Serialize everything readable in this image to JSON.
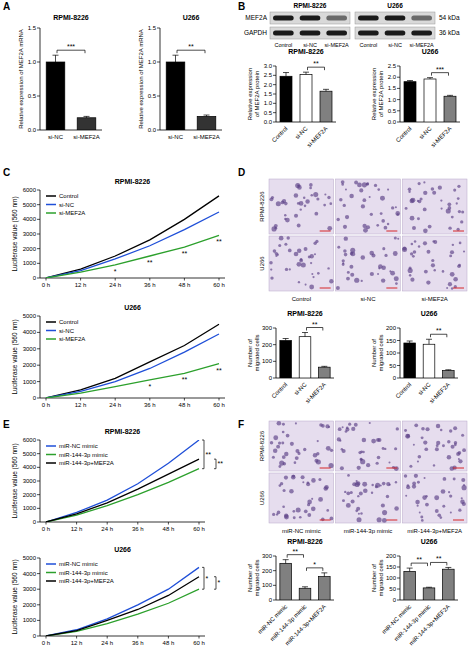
{
  "figure": {
    "panel_letters": [
      "A",
      "B",
      "C",
      "D",
      "E",
      "F"
    ],
    "blot": {
      "groups": [
        "RPMI-8226",
        "U266"
      ],
      "lanes": [
        "Control",
        "si-NC",
        "si-MEF2A"
      ],
      "rows": [
        {
          "protein": "MEF2A",
          "size": "54 kDa"
        },
        {
          "protein": "GAPDH",
          "size": "36 kDa"
        }
      ]
    },
    "micrographs": [
      {
        "rows": [
          "RPMI-8226",
          "U266"
        ],
        "columns": [
          "Control",
          "si-NC",
          "si-MEF2A"
        ]
      },
      {
        "rows": [
          "RPMI-8226",
          "U266"
        ],
        "columns": [
          "miR-NC mimic",
          "miR-144-3p mimic",
          "miR-144-3p+MEF2A"
        ]
      }
    ]
  },
  "chart_data": [
    {
      "type": "bar",
      "title": "RPMI-8226",
      "y_label": "Relative expression of MEF2A mRNA",
      "categories": [
        "si-NC",
        "si-MEF2A"
      ],
      "values": [
        1.0,
        0.18
      ],
      "errors": [
        0.1,
        0.02
      ],
      "colors": [
        "#000000",
        "#333333"
      ],
      "ylim": [
        0,
        1.5
      ],
      "yticks": [
        {
          "value": 0,
          "label": "0.0"
        },
        0.5,
        {
          "value": 1,
          "label": "1.0"
        },
        1.5
      ],
      "annotations": [
        {
          "text": "***",
          "between": [
            "si-NC",
            "si-MEF2A"
          ]
        }
      ]
    },
    {
      "type": "bar",
      "title": "U266",
      "y_label": "Relative expression of MEF2A mRNA",
      "categories": [
        "si-NC",
        "si-MEF2A"
      ],
      "values": [
        1.0,
        0.2
      ],
      "errors": [
        0.1,
        0.02
      ],
      "colors": [
        "#000000",
        "#333333"
      ],
      "ylim": [
        0,
        1.5
      ],
      "yticks": [
        {
          "value": 0,
          "label": "0.0"
        },
        0.5,
        {
          "value": 1,
          "label": "1.0"
        },
        1.5
      ],
      "annotations": [
        {
          "text": "**",
          "between": [
            "si-NC",
            "si-MEF2A"
          ]
        }
      ]
    },
    {
      "type": "bar",
      "title": "RPMI-8226",
      "y_label": "Relative expression of MEF2A protein",
      "categories": [
        "Control",
        "si-NC",
        "si-MEF2A"
      ],
      "values": [
        2.45,
        2.55,
        1.65
      ],
      "errors": [
        0.2,
        0.12,
        0.1
      ],
      "colors": [
        "#000000",
        "#ffffff",
        "#808080"
      ],
      "ylim": [
        0,
        3
      ],
      "yticks": [
        {
          "value": 0,
          "label": "0.0"
        },
        0.5,
        {
          "value": 1,
          "label": "1.0"
        },
        1.5,
        {
          "value": 2,
          "label": "2.0"
        },
        2.5,
        {
          "value": 3,
          "label": "3.0"
        }
      ],
      "annotations": [
        {
          "text": "**",
          "between": [
            "si-NC",
            "si-MEF2A"
          ]
        }
      ]
    },
    {
      "type": "bar",
      "title": "U266",
      "y_label": "Relative expression of MEF2A protein",
      "categories": [
        "Control",
        "si-NC",
        "si-MEF2A"
      ],
      "values": [
        1.8,
        1.92,
        1.15
      ],
      "errors": [
        0.05,
        0.06,
        0.04
      ],
      "colors": [
        "#000000",
        "#ffffff",
        "#808080"
      ],
      "ylim": [
        0,
        2.5
      ],
      "yticks": [
        {
          "value": 0,
          "label": "0.0"
        },
        0.5,
        {
          "value": 1,
          "label": "1.0"
        },
        1.5,
        {
          "value": 2,
          "label": "2.0"
        },
        2.5
      ],
      "annotations": [
        {
          "text": "***",
          "between": [
            "si-NC",
            "si-MEF2A"
          ]
        }
      ]
    },
    {
      "type": "line",
      "title": "RPMI-8226",
      "y_label": "Luciferase value (560 nm)",
      "categories": [
        "0 h",
        "12 h",
        "24 h",
        "36 h",
        "48 h",
        "60 h"
      ],
      "series": [
        {
          "name": "Control",
          "color": "#000000",
          "values": [
            0,
            600,
            1500,
            2600,
            4000,
            5600
          ]
        },
        {
          "name": "si-NC",
          "color": "#1f4fd8",
          "values": [
            0,
            500,
            1300,
            2200,
            3300,
            4500
          ]
        },
        {
          "name": "si-MEF2A",
          "color": "#2ca02c",
          "values": [
            0,
            400,
            900,
            1500,
            2100,
            2900
          ]
        }
      ],
      "ylim": [
        0,
        6000
      ],
      "yticks": [
        0,
        1000,
        2000,
        3000,
        4000,
        5000,
        6000
      ],
      "legend": "top-left",
      "annotations": [
        {
          "text": "*",
          "at": "24 h"
        },
        {
          "text": "**",
          "at": "36 h"
        },
        {
          "text": "**",
          "at": "48 h"
        },
        {
          "text": "**",
          "at": "60 h"
        }
      ]
    },
    {
      "type": "line",
      "title": "U266",
      "y_label": "Luciferase value (560 nm)",
      "categories": [
        "0 h",
        "12 h",
        "24 h",
        "36 h",
        "48 h",
        "60 h"
      ],
      "series": [
        {
          "name": "Control",
          "color": "#000000",
          "values": [
            0,
            500,
            1200,
            2200,
            3200,
            4500
          ]
        },
        {
          "name": "si-NC",
          "color": "#1f4fd8",
          "values": [
            0,
            400,
            1000,
            1800,
            2800,
            3900
          ]
        },
        {
          "name": "si-MEF2A",
          "color": "#2ca02c",
          "values": [
            0,
            300,
            700,
            1100,
            1500,
            2100
          ]
        }
      ],
      "ylim": [
        0,
        5000
      ],
      "yticks": [
        0,
        1000,
        2000,
        3000,
        4000,
        5000
      ],
      "legend": "top-left",
      "annotations": [
        {
          "text": "*",
          "at": "36 h"
        },
        {
          "text": "**",
          "at": "48 h"
        },
        {
          "text": "**",
          "at": "60 h"
        }
      ]
    },
    {
      "type": "bar",
      "title": "RPMI-8226",
      "y_label": "Number of migrated cells",
      "categories": [
        "Control",
        "si-NC",
        "si-MEF2A"
      ],
      "values": [
        225,
        248,
        65
      ],
      "errors": [
        12,
        25,
        5
      ],
      "colors": [
        "#000000",
        "#ffffff",
        "#808080"
      ],
      "ylim": [
        0,
        300
      ],
      "yticks": [
        0,
        100,
        200,
        300
      ],
      "annotations": [
        {
          "text": "**",
          "between": [
            "si-NC",
            "si-MEF2A"
          ]
        }
      ]
    },
    {
      "type": "bar",
      "title": "U266",
      "y_label": "Number of migrated cells",
      "categories": [
        "Control",
        "si-NC",
        "si-MEF2A"
      ],
      "values": [
        140,
        135,
        30
      ],
      "errors": [
        8,
        20,
        3
      ],
      "colors": [
        "#000000",
        "#ffffff",
        "#808080"
      ],
      "ylim": [
        0,
        200
      ],
      "yticks": [
        0,
        50,
        100,
        150,
        200
      ],
      "annotations": [
        {
          "text": "**",
          "between": [
            "si-NC",
            "si-MEF2A"
          ]
        }
      ]
    },
    {
      "type": "line",
      "title": "RPMI-8226",
      "y_label": "Luciferase value (560 nm)",
      "categories": [
        "0 h",
        "12 h",
        "24 h",
        "36 h",
        "48 h",
        "60 h"
      ],
      "series": [
        {
          "name": "miR-NC mimic",
          "color": "#1f4fd8",
          "values": [
            0,
            700,
            1600,
            2800,
            4300,
            6000
          ]
        },
        {
          "name": "miR-144-3p mimic",
          "color": "#2ca02c",
          "values": [
            0,
            500,
            1200,
            2000,
            2900,
            3900
          ]
        },
        {
          "name": "miR-144-3p+MEF2A",
          "color": "#000000",
          "values": [
            0,
            600,
            1400,
            2400,
            3500,
            4600
          ]
        }
      ],
      "ylim": [
        0,
        6000
      ],
      "yticks": [
        0,
        1000,
        2000,
        3000,
        4000,
        5000,
        6000
      ],
      "legend": "top-left",
      "annotations": [
        {
          "text": "**",
          "at": "60 h",
          "between": [
            "miR-NC mimic",
            "miR-144-3p mimic"
          ]
        },
        {
          "text": "**",
          "at": "60 h",
          "between": [
            "miR-144-3p mimic",
            "miR-144-3p+MEF2A"
          ]
        }
      ]
    },
    {
      "type": "line",
      "title": "U266",
      "y_label": "Luciferase value (560 nm)",
      "categories": [
        "0 h",
        "12 h",
        "24 h",
        "36 h",
        "48 h",
        "60 h"
      ],
      "series": [
        {
          "name": "miR-NC mimic",
          "color": "#1f4fd8",
          "values": [
            0,
            400,
            1100,
            2000,
            3000,
            4400
          ]
        },
        {
          "name": "miR-144-3p mimic",
          "color": "#2ca02c",
          "values": [
            0,
            300,
            800,
            1400,
            2100,
            3000
          ]
        },
        {
          "name": "miR-144-3p+MEF2A",
          "color": "#000000",
          "values": [
            0,
            350,
            1000,
            1700,
            2600,
            3800
          ]
        }
      ],
      "ylim": [
        0,
        5000
      ],
      "yticks": [
        0,
        1000,
        2000,
        3000,
        4000,
        5000
      ],
      "legend": "top-left",
      "annotations": [
        {
          "text": "*",
          "at": "60 h",
          "between": [
            "miR-NC mimic",
            "miR-144-3p mimic"
          ]
        },
        {
          "text": "*",
          "at": "60 h",
          "between": [
            "miR-144-3p mimic",
            "miR-144-3p+MEF2A"
          ]
        }
      ]
    },
    {
      "type": "bar",
      "title": "RPMI-8226",
      "y_label": "Number of migrated cells",
      "categories": [
        "miR-NC mimic",
        "miR-144-3p mimic",
        "miR-144-3p+MEF2A"
      ],
      "values": [
        250,
        80,
        160
      ],
      "errors": [
        25,
        10,
        25
      ],
      "colors": [
        "#808080",
        "#808080",
        "#808080"
      ],
      "ylim": [
        0,
        300
      ],
      "yticks": [
        0,
        100,
        200,
        300
      ],
      "annotations": [
        {
          "text": "**",
          "between": [
            "miR-NC mimic",
            "miR-144-3p mimic"
          ]
        },
        {
          "text": "*",
          "between": [
            "miR-144-3p mimic",
            "miR-144-3p+MEF2A"
          ]
        }
      ]
    },
    {
      "type": "bar",
      "title": "U266",
      "y_label": "Number of migrated cells",
      "categories": [
        "miR-NC mimic",
        "miR-144-3p mimic",
        "miR-144-3p+MEF2A"
      ],
      "values": [
        130,
        55,
        140
      ],
      "errors": [
        15,
        3,
        8
      ],
      "colors": [
        "#808080",
        "#808080",
        "#808080"
      ],
      "ylim": [
        0,
        200
      ],
      "yticks": [
        0,
        50,
        100,
        150,
        200
      ],
      "annotations": [
        {
          "text": "**",
          "between": [
            "miR-NC mimic",
            "miR-144-3p mimic"
          ]
        },
        {
          "text": "**",
          "between": [
            "miR-144-3p mimic",
            "miR-144-3p+MEF2A"
          ]
        }
      ]
    }
  ]
}
